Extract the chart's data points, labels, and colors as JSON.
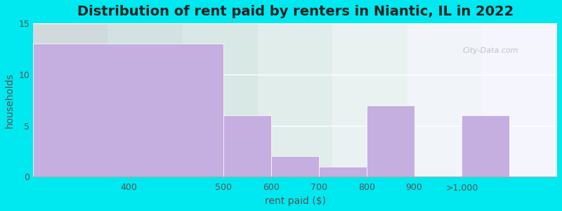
{
  "title": "Distribution of rent paid by renters in Niantic, IL in 2022",
  "xlabel": "rent paid ($)",
  "ylabel": "households",
  "tick_labels": [
    "",
    "400",
    "500",
    "600",
    "700",
    "800",
    "900",
    ">1,000",
    ""
  ],
  "values": [
    13,
    6,
    2,
    1,
    7,
    0,
    6
  ],
  "bar_color": "#c5aee0",
  "bar_edgecolor": "#c5aee0",
  "ylim": [
    0,
    15
  ],
  "yticks": [
    0,
    5,
    10,
    15
  ],
  "background_outer": "#00e8f0",
  "background_inner_left": "#f8f8ff",
  "background_inner_right": "#e0f0e0",
  "title_fontsize": 14,
  "label_fontsize": 10,
  "tick_fontsize": 9,
  "watermark": "City-Data.com"
}
